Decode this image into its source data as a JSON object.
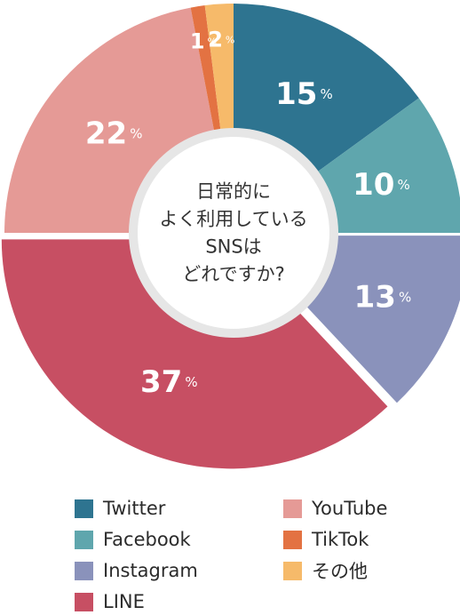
{
  "chart_data": {
    "type": "pie",
    "title": "日常的に\nよく利用している\nSNSは\nどれですか?",
    "unit": "%",
    "slices": [
      {
        "name": "Twitter",
        "value": 15,
        "color": "#2e7490"
      },
      {
        "name": "Facebook",
        "value": 10,
        "color": "#5fa6ad"
      },
      {
        "name": "Instagram",
        "value": 13,
        "color": "#8a92bb"
      },
      {
        "name": "LINE",
        "value": 37,
        "color": "#c74f63"
      },
      {
        "name": "YouTube",
        "value": 22,
        "color": "#e59a96"
      },
      {
        "name": "TikTok",
        "value": 1,
        "color": "#e37242"
      },
      {
        "name": "その他",
        "value": 2,
        "color": "#f6ba6a"
      }
    ],
    "exploded": [
      "Instagram",
      "LINE"
    ],
    "legend_position": "bottom"
  },
  "legend": {
    "items": [
      {
        "label": "Twitter",
        "color": "#2e7490"
      },
      {
        "label": "YouTube",
        "color": "#e59a96"
      },
      {
        "label": "Facebook",
        "color": "#5fa6ad"
      },
      {
        "label": "TikTok",
        "color": "#e37242"
      },
      {
        "label": "Instagram",
        "color": "#8a92bb"
      },
      {
        "label": "その他",
        "color": "#f6ba6a"
      },
      {
        "label": "LINE",
        "color": "#c74f63"
      }
    ]
  }
}
